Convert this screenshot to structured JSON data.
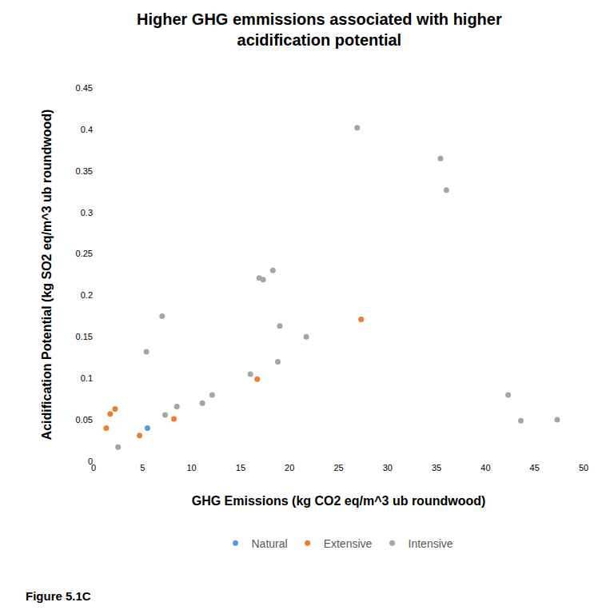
{
  "chart_data": {
    "type": "scatter",
    "title": "Higher GHG emmissions associated with higher acidification potential",
    "x_label": "GHG Emissions (kg CO2 eq/m^3 ub roundwood)",
    "y_label": "Acidification Potential (kg SO2 eq/m^3 ub roundwood)",
    "annotations": [
      "Figure 5.1C"
    ],
    "xlim": [
      0,
      50
    ],
    "xticks": [
      0,
      5,
      10,
      15,
      20,
      25,
      30,
      35,
      40,
      45,
      50
    ],
    "ylim": [
      0,
      0.45
    ],
    "yticks": [
      0,
      0.05,
      0.1,
      0.15,
      0.2,
      0.25,
      0.3,
      0.35,
      0.4,
      0.45
    ],
    "grid": false,
    "legend": "bottom",
    "marker": "circle",
    "series": [
      {
        "name": "Natural",
        "color": "#5B9BD5",
        "x": [
          5.5
        ],
        "values": [
          0.04
        ]
      },
      {
        "name": "Extensive",
        "color": "#ED7D31",
        "x": [
          1.3,
          1.7,
          2.2,
          4.7,
          8.2,
          16.7,
          27.3
        ],
        "values": [
          0.04,
          0.057,
          0.063,
          0.031,
          0.051,
          0.099,
          0.171
        ]
      },
      {
        "name": "Intensive",
        "color": "#A5A5A5",
        "x": [
          2.5,
          5.4,
          7.0,
          7.3,
          8.5,
          11.1,
          12.1,
          16.0,
          16.9,
          17.3,
          18.3,
          18.8,
          19.0,
          21.7,
          26.9,
          35.4,
          36.0,
          42.3,
          43.6,
          47.3
        ],
        "values": [
          0.017,
          0.132,
          0.175,
          0.056,
          0.066,
          0.07,
          0.08,
          0.105,
          0.221,
          0.219,
          0.23,
          0.12,
          0.163,
          0.15,
          0.402,
          0.365,
          0.327,
          0.08,
          0.049,
          0.05
        ]
      }
    ]
  }
}
